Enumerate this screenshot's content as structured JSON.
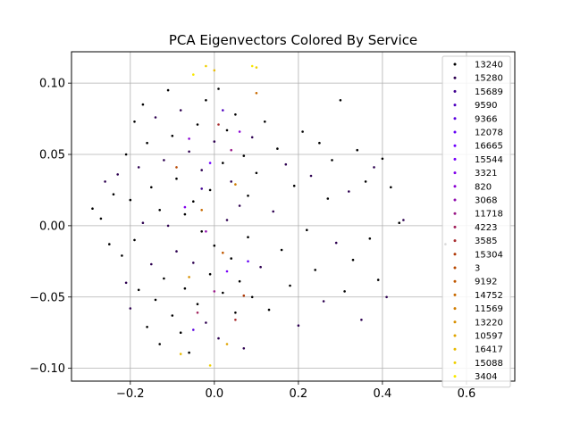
{
  "chart_data": {
    "type": "scatter",
    "title": "PCA Eigenvectors Colored By Service",
    "xlabel": "",
    "ylabel": "",
    "xlim": [
      -0.34,
      0.715
    ],
    "ylim": [
      -0.109,
      0.122
    ],
    "xticks": [
      -0.2,
      0.0,
      0.2,
      0.4,
      0.6
    ],
    "xtick_labels": [
      "−0.2",
      "0.0",
      "0.2",
      "0.4",
      "0.6"
    ],
    "yticks": [
      -0.1,
      -0.05,
      0.0,
      0.05,
      0.1
    ],
    "ytick_labels": [
      "−0.10",
      "−0.05",
      "0.00",
      "0.05",
      "0.10"
    ],
    "grid": true,
    "legend_position": "top-right",
    "colormap": "gnuplot",
    "series": [
      {
        "name": "13240",
        "color": "#000000"
      },
      {
        "name": "15280",
        "color": "#2d0050"
      },
      {
        "name": "15689",
        "color": "#400090"
      },
      {
        "name": "9590",
        "color": "#4e00c0"
      },
      {
        "name": "9366",
        "color": "#5a00e0"
      },
      {
        "name": "12078",
        "color": "#6400f6"
      },
      {
        "name": "16665",
        "color": "#6e00ff"
      },
      {
        "name": "15544",
        "color": "#7800fb"
      },
      {
        "name": "3321",
        "color": "#8100ec"
      },
      {
        "name": "820",
        "color": "#8a00d3"
      },
      {
        "name": "3068",
        "color": "#9210b0"
      },
      {
        "name": "11718",
        "color": "#9a1a88"
      },
      {
        "name": "4223",
        "color": "#a2225c"
      },
      {
        "name": "3585",
        "color": "#a92e30"
      },
      {
        "name": "15304",
        "color": "#b03a08"
      },
      {
        "name": "3",
        "color": "#b84800"
      },
      {
        "name": "9192",
        "color": "#c05800"
      },
      {
        "name": "14752",
        "color": "#c86a00"
      },
      {
        "name": "11569",
        "color": "#d07c00"
      },
      {
        "name": "13220",
        "color": "#d89000"
      },
      {
        "name": "10597",
        "color": "#e0a400"
      },
      {
        "name": "16417",
        "color": "#e8ba00"
      },
      {
        "name": "15088",
        "color": "#f0d000"
      },
      {
        "name": "3404",
        "color": "#f8e800"
      }
    ],
    "points": [
      [
        -0.29,
        0.012,
        0
      ],
      [
        -0.27,
        0.005,
        0
      ],
      [
        -0.26,
        0.031,
        1
      ],
      [
        -0.25,
        -0.013,
        0
      ],
      [
        -0.24,
        0.022,
        0
      ],
      [
        -0.23,
        0.036,
        1
      ],
      [
        -0.22,
        -0.021,
        0
      ],
      [
        -0.21,
        0.05,
        0
      ],
      [
        -0.21,
        -0.04,
        1
      ],
      [
        -0.2,
        0.018,
        0
      ],
      [
        -0.2,
        -0.058,
        1
      ],
      [
        -0.19,
        0.073,
        0
      ],
      [
        -0.19,
        -0.01,
        0
      ],
      [
        -0.18,
        0.041,
        1
      ],
      [
        -0.18,
        -0.045,
        0
      ],
      [
        -0.17,
        0.085,
        0
      ],
      [
        -0.17,
        0.002,
        1
      ],
      [
        -0.16,
        -0.071,
        0
      ],
      [
        -0.16,
        0.058,
        0
      ],
      [
        -0.15,
        -0.027,
        1
      ],
      [
        -0.15,
        0.027,
        0
      ],
      [
        -0.14,
        -0.052,
        0
      ],
      [
        -0.14,
        0.076,
        1
      ],
      [
        -0.13,
        0.011,
        0
      ],
      [
        -0.13,
        -0.083,
        0
      ],
      [
        -0.12,
        0.046,
        1
      ],
      [
        -0.12,
        -0.037,
        0
      ],
      [
        -0.11,
        0.095,
        0
      ],
      [
        -0.11,
        0.0,
        1
      ],
      [
        -0.1,
        -0.063,
        0
      ],
      [
        -0.1,
        0.063,
        0
      ],
      [
        -0.09,
        -0.018,
        1
      ],
      [
        -0.09,
        0.033,
        0
      ],
      [
        -0.08,
        -0.075,
        0
      ],
      [
        -0.08,
        0.081,
        1
      ],
      [
        -0.07,
        0.008,
        0
      ],
      [
        -0.07,
        -0.044,
        0
      ],
      [
        -0.06,
        0.052,
        1
      ],
      [
        -0.06,
        -0.089,
        0
      ],
      [
        -0.05,
        0.017,
        0
      ],
      [
        -0.05,
        -0.026,
        1
      ],
      [
        -0.04,
        0.071,
        0
      ],
      [
        -0.04,
        -0.055,
        0
      ],
      [
        -0.03,
        0.039,
        1
      ],
      [
        -0.03,
        -0.004,
        0
      ],
      [
        -0.02,
        0.088,
        0
      ],
      [
        -0.02,
        -0.068,
        1
      ],
      [
        -0.01,
        0.025,
        0
      ],
      [
        -0.01,
        -0.034,
        0
      ],
      [
        0.0,
        0.059,
        1
      ],
      [
        0.0,
        -0.014,
        0
      ],
      [
        0.01,
        0.096,
        0
      ],
      [
        0.01,
        -0.079,
        1
      ],
      [
        0.02,
        0.044,
        0
      ],
      [
        0.02,
        -0.047,
        0
      ],
      [
        0.03,
        0.004,
        1
      ],
      [
        0.03,
        0.067,
        0
      ],
      [
        0.04,
        -0.023,
        0
      ],
      [
        0.04,
        0.031,
        1
      ],
      [
        0.05,
        -0.061,
        0
      ],
      [
        0.05,
        0.078,
        0
      ],
      [
        0.06,
        0.014,
        1
      ],
      [
        0.06,
        -0.039,
        0
      ],
      [
        0.07,
        0.049,
        0
      ],
      [
        0.07,
        -0.086,
        1
      ],
      [
        0.08,
        0.021,
        0
      ],
      [
        0.08,
        -0.008,
        0
      ],
      [
        0.09,
        0.062,
        1
      ],
      [
        0.09,
        -0.05,
        0
      ],
      [
        0.1,
        0.037,
        0
      ],
      [
        0.11,
        -0.029,
        1
      ],
      [
        0.12,
        0.073,
        0
      ],
      [
        0.13,
        -0.059,
        0
      ],
      [
        0.14,
        0.01,
        1
      ],
      [
        0.15,
        0.054,
        0
      ],
      [
        0.16,
        -0.017,
        0
      ],
      [
        0.17,
        0.043,
        1
      ],
      [
        0.18,
        -0.042,
        0
      ],
      [
        0.19,
        0.028,
        0
      ],
      [
        0.2,
        -0.07,
        1
      ],
      [
        0.21,
        0.066,
        0
      ],
      [
        0.22,
        -0.003,
        0
      ],
      [
        0.23,
        0.035,
        1
      ],
      [
        0.24,
        -0.031,
        0
      ],
      [
        0.25,
        0.058,
        0
      ],
      [
        0.26,
        -0.053,
        1
      ],
      [
        0.27,
        0.019,
        0
      ],
      [
        0.28,
        0.046,
        0
      ],
      [
        0.29,
        -0.012,
        1
      ],
      [
        0.3,
        0.088,
        0
      ],
      [
        0.31,
        -0.046,
        0
      ],
      [
        0.32,
        0.024,
        1
      ],
      [
        0.33,
        -0.024,
        0
      ],
      [
        0.34,
        0.053,
        0
      ],
      [
        0.35,
        -0.066,
        1
      ],
      [
        0.36,
        0.031,
        0
      ],
      [
        0.37,
        -0.009,
        0
      ],
      [
        0.38,
        0.041,
        1
      ],
      [
        0.39,
        -0.038,
        0
      ],
      [
        0.4,
        0.047,
        0
      ],
      [
        0.41,
        -0.05,
        1
      ],
      [
        0.42,
        0.027,
        0
      ],
      [
        0.44,
        0.002,
        0
      ],
      [
        0.45,
        0.004,
        1
      ],
      [
        0.55,
        -0.013,
        0
      ],
      [
        -0.05,
        0.106,
        23
      ],
      [
        -0.02,
        0.112,
        22
      ],
      [
        0.0,
        0.109,
        21
      ],
      [
        0.1,
        0.111,
        22
      ],
      [
        0.09,
        0.112,
        23
      ],
      [
        -0.08,
        -0.09,
        21
      ],
      [
        -0.01,
        -0.098,
        22
      ],
      [
        0.03,
        -0.083,
        20
      ],
      [
        -0.06,
        -0.036,
        19
      ],
      [
        0.05,
        0.029,
        18
      ],
      [
        -0.03,
        0.011,
        17
      ],
      [
        0.02,
        -0.019,
        16
      ],
      [
        -0.09,
        0.041,
        15
      ],
      [
        0.07,
        -0.049,
        14
      ],
      [
        0.01,
        0.071,
        13
      ],
      [
        -0.04,
        -0.061,
        12
      ],
      [
        0.04,
        0.053,
        11
      ],
      [
        -0.02,
        -0.004,
        10
      ],
      [
        0.06,
        0.066,
        9
      ],
      [
        -0.07,
        0.013,
        8
      ],
      [
        0.03,
        -0.032,
        7
      ],
      [
        -0.01,
        0.044,
        6
      ],
      [
        0.08,
        -0.025,
        5
      ],
      [
        -0.05,
        -0.073,
        4
      ],
      [
        0.02,
        0.081,
        3
      ],
      [
        -0.03,
        0.026,
        2
      ],
      [
        0.0,
        -0.046,
        11
      ],
      [
        0.05,
        -0.066,
        13
      ],
      [
        -0.06,
        0.061,
        9
      ],
      [
        0.1,
        0.093,
        17
      ]
    ]
  }
}
